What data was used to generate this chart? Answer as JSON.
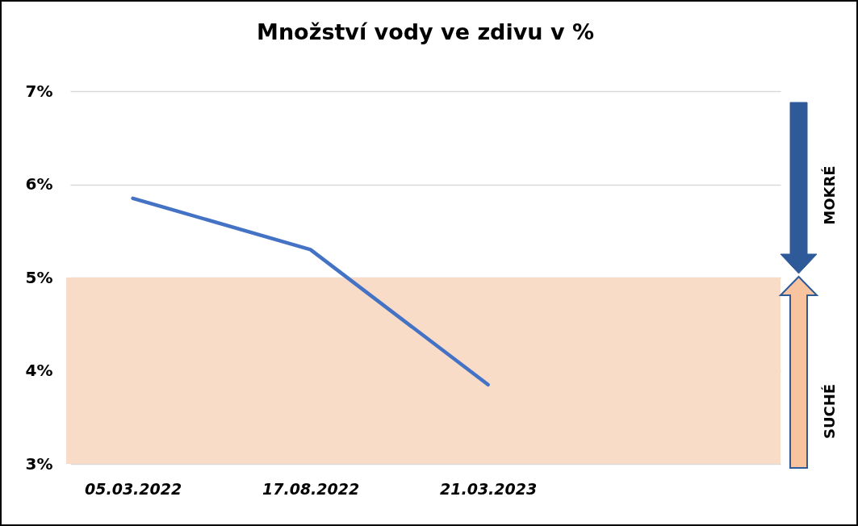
{
  "chart_data": {
    "type": "line",
    "title": "Množství vody ve zdivu v %",
    "categories": [
      "05.03.2022",
      "17.08.2022",
      "21.03.2023"
    ],
    "series": [
      {
        "color": "#4472c4",
        "values": [
          5.85,
          5.3,
          3.85
        ]
      }
    ],
    "ylim": [
      3,
      7
    ],
    "yticks": [
      {
        "value": 3,
        "label": "3%"
      },
      {
        "value": 4,
        "label": "4%"
      },
      {
        "value": 5,
        "label": "5%"
      },
      {
        "value": 6,
        "label": "6%"
      },
      {
        "value": 7,
        "label": "7%"
      }
    ],
    "grid": "y",
    "bands": [
      {
        "axis": "y",
        "from": 3,
        "to": 5,
        "color": "#f8dcc8"
      }
    ],
    "annotations": [
      "MOKRÉ",
      "SUCHÉ"
    ]
  }
}
